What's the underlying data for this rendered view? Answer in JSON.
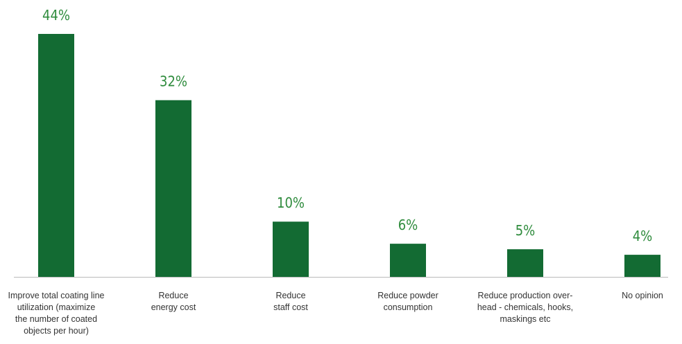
{
  "chart_data": {
    "type": "bar",
    "title": "",
    "xlabel": "",
    "ylabel": "",
    "ylim": [
      0,
      44
    ],
    "grid": false,
    "legend": "none",
    "categories": [
      "Improve total coating line utilization (maximize the number of coated objects per hour)",
      "Reduce energy cost",
      "Reduce staff cost",
      "Reduce powder consumption",
      "Reduce production over-head - chemicals, hooks, maskings etc",
      "No opinion"
    ],
    "category_lines": [
      [
        "Improve total coating line",
        "utilization (maximize",
        "the number of coated",
        "objects per hour)"
      ],
      [
        "Reduce",
        "energy cost"
      ],
      [
        "Reduce",
        "staff cost"
      ],
      [
        "Reduce powder",
        "consumption"
      ],
      [
        "Reduce production over-",
        "head - chemicals, hooks,",
        "maskings etc"
      ],
      [
        "No opinion"
      ]
    ],
    "values": [
      44,
      32,
      10,
      6,
      5,
      4
    ],
    "value_labels": [
      "44%",
      "32%",
      "10%",
      "6%",
      "5%",
      "4%"
    ],
    "colors": {
      "bar": "#136b33",
      "value_label": "#2e8b3c",
      "axis": "#b9b9b9",
      "category_text": "#333333"
    }
  }
}
